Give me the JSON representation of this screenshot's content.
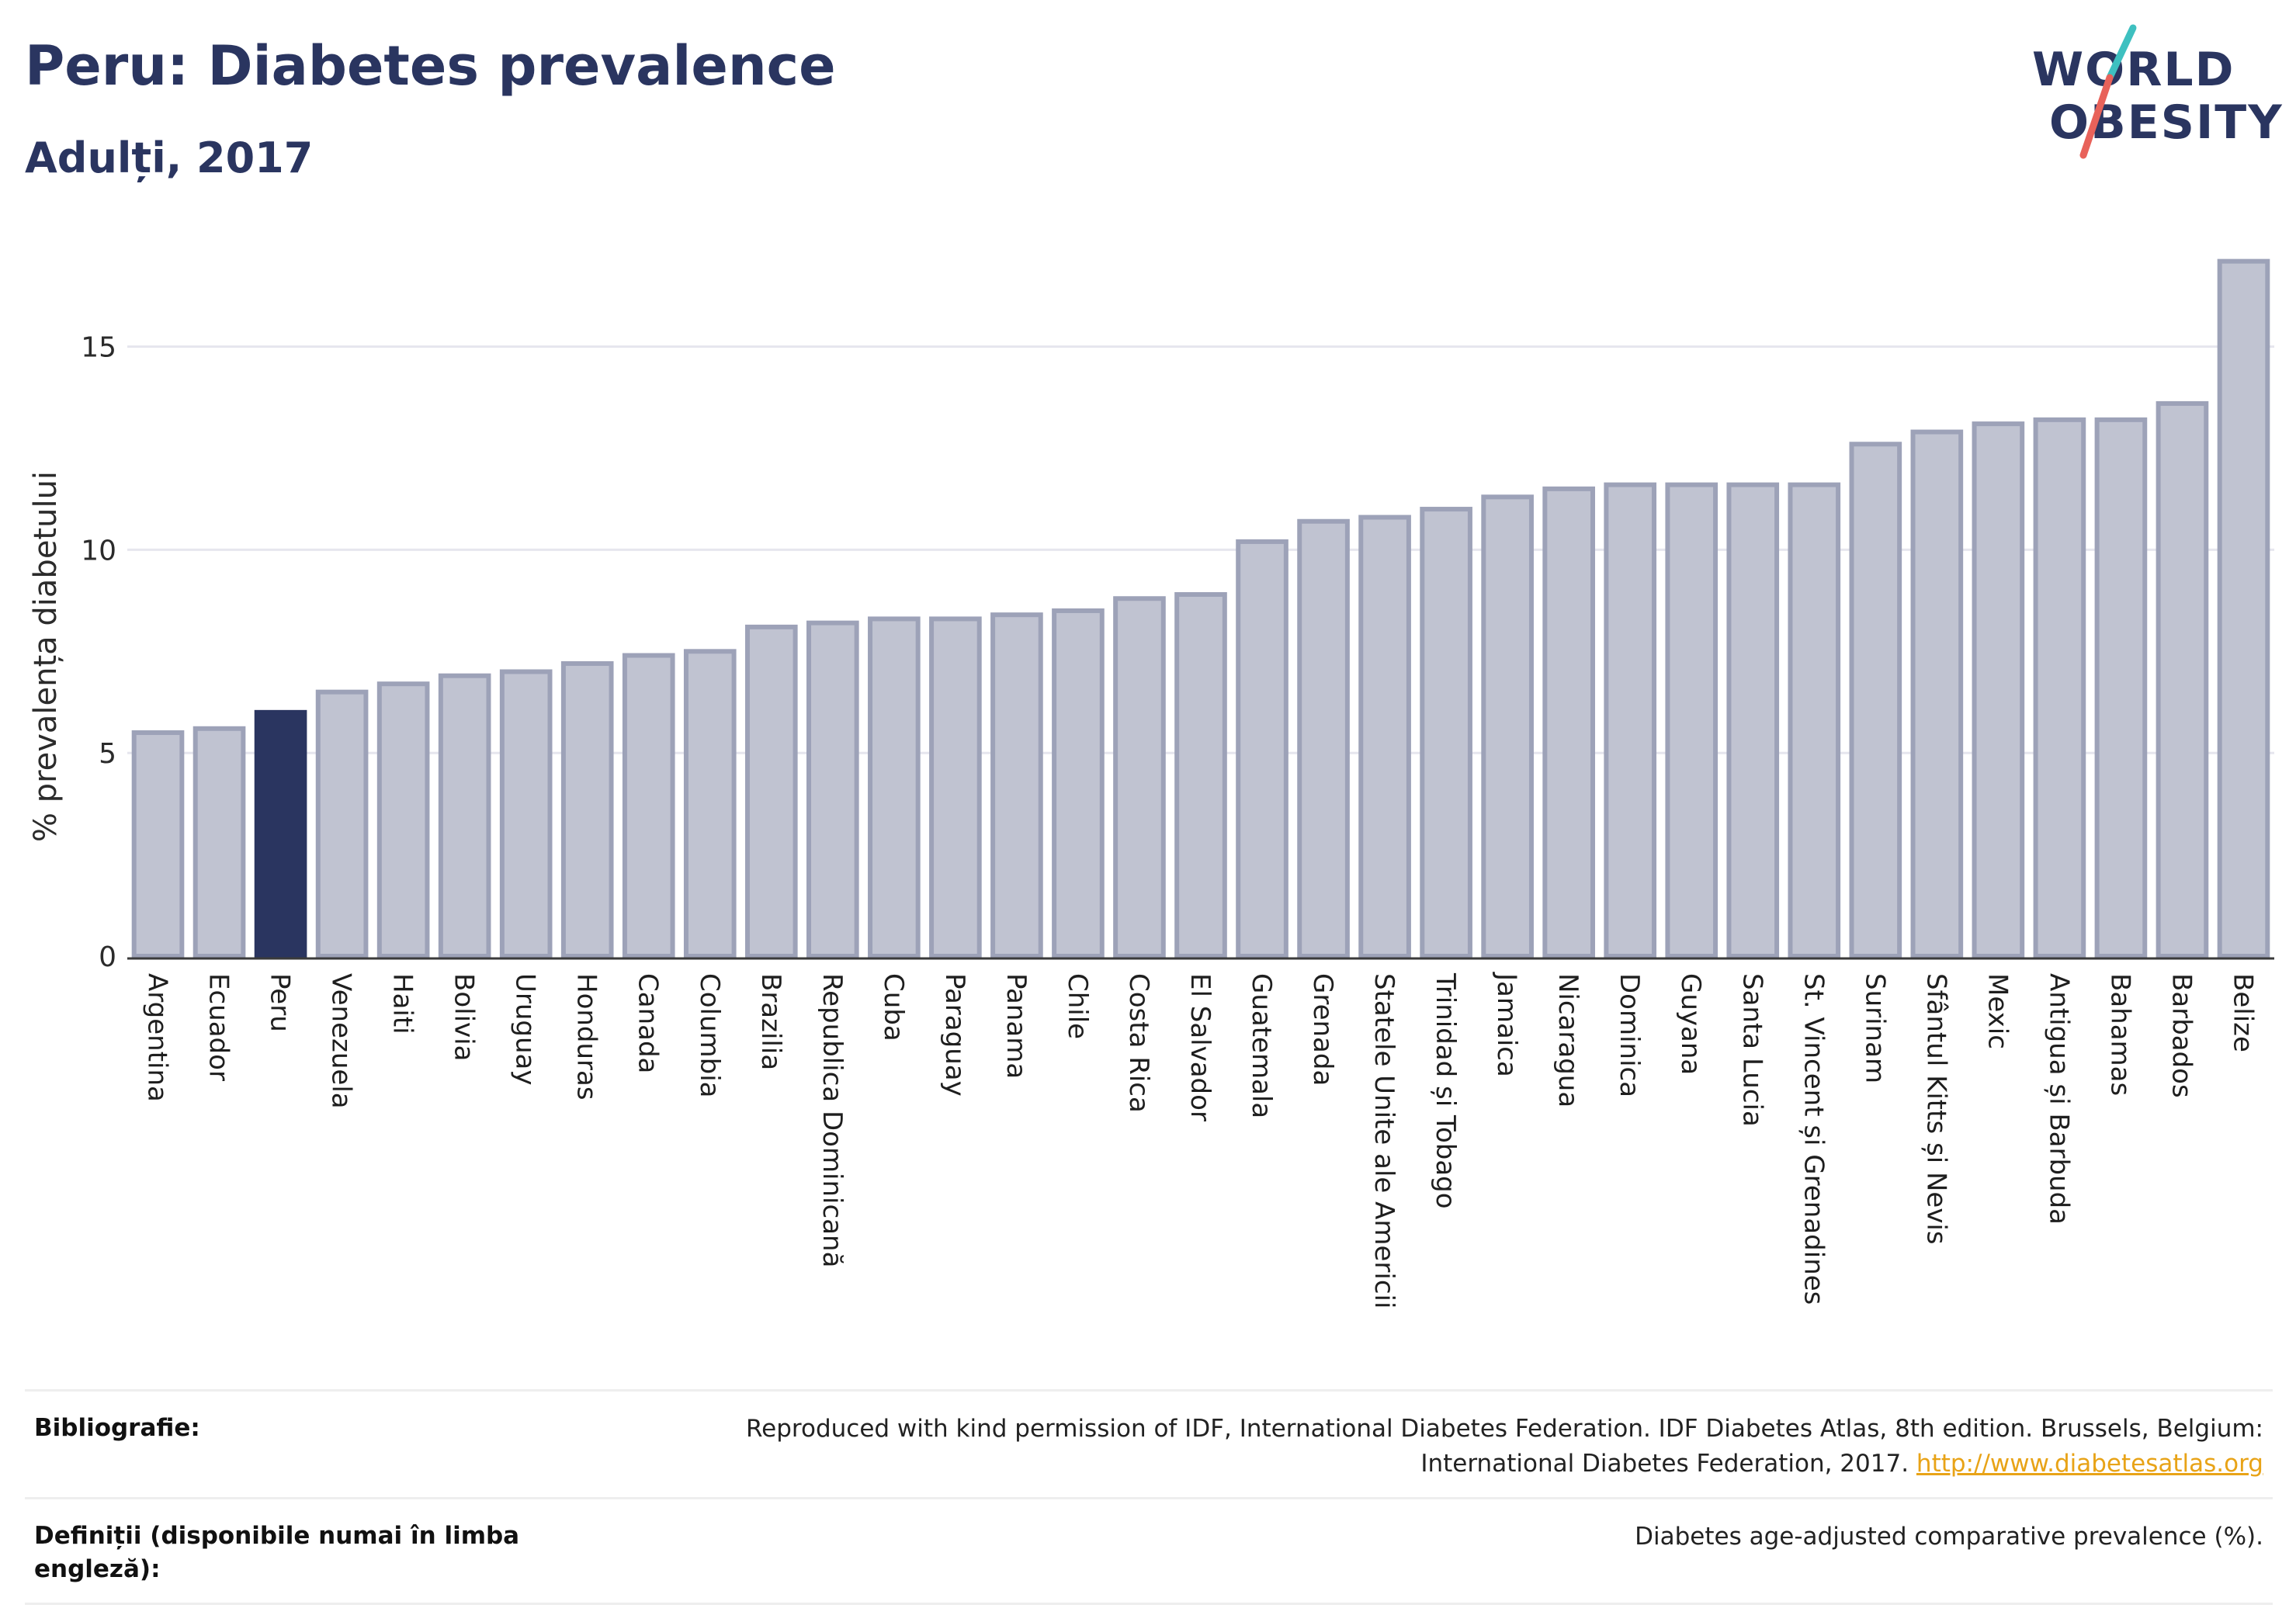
{
  "header": {
    "title": "Peru: Diabetes prevalence",
    "subtitle": "Adulți, 2017"
  },
  "logo": {
    "line1": "WORLD",
    "line2": "OBESITY",
    "colors": {
      "text": "#2a3560",
      "slash_top": "#3ec0c0",
      "slash_bottom": "#e8625a"
    }
  },
  "chart_data": {
    "type": "bar",
    "ylabel": "% prevalența diabetului",
    "xlabel": "",
    "ylim": [
      0,
      17.8
    ],
    "yticks": [
      0,
      5,
      10,
      15
    ],
    "grid": true,
    "highlight": "Peru",
    "colors": {
      "bar": "#c0c3d1",
      "bar_edge": "#9da2b8",
      "highlight": "#2a3560"
    },
    "categories": [
      "Argentina",
      "Ecuador",
      "Peru",
      "Venezuela",
      "Haiti",
      "Bolivia",
      "Uruguay",
      "Honduras",
      "Canada",
      "Columbia",
      "Brazilia",
      "Republica Dominicană",
      "Cuba",
      "Paraguay",
      "Panama",
      "Chile",
      "Costa Rica",
      "El Salvador",
      "Guatemala",
      "Grenada",
      "Statele Unite ale Americii",
      "Trinidad și Tobago",
      "Jamaica",
      "Nicaragua",
      "Dominica",
      "Guyana",
      "Santa Lucia",
      "St. Vincent și Grenadines",
      "Surinam",
      "Sfântul Kitts și Nevis",
      "Mexic",
      "Antigua și Barbuda",
      "Bahamas",
      "Barbados",
      "Belize"
    ],
    "values": [
      5.5,
      5.6,
      6.0,
      6.5,
      6.7,
      6.9,
      7.0,
      7.2,
      7.4,
      7.5,
      8.1,
      8.2,
      8.3,
      8.3,
      8.4,
      8.5,
      8.8,
      8.9,
      10.2,
      10.7,
      10.8,
      11.0,
      11.3,
      11.5,
      11.6,
      11.6,
      11.6,
      11.6,
      12.6,
      12.9,
      13.1,
      13.2,
      13.2,
      13.6,
      17.1
    ]
  },
  "footer": {
    "bibliography_label": "Bibliografie:",
    "bibliography_text": "Reproduced with kind permission of IDF, International Diabetes Federation. IDF Diabetes Atlas, 8th edition. Brussels, Belgium: International Diabetes Federation, 2017.",
    "bibliography_link": "http://www.diabetesatlas.org",
    "definitions_label": "Definiții (disponibile numai în limba engleză):",
    "definitions_text": "Diabetes age-adjusted comparative prevalence (%)."
  }
}
